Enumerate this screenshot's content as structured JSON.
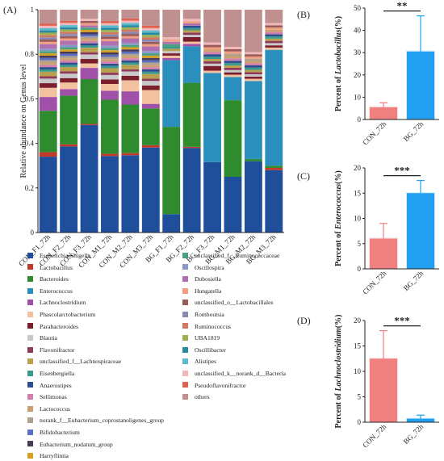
{
  "chart_data": [
    {
      "id": "A",
      "panel_label": "(A)",
      "type": "bar",
      "stacked": true,
      "ylabel": "Relative abundance on Genus level",
      "ylim": [
        0,
        1
      ],
      "yticks": [
        "0",
        "0.2",
        "0.4",
        "0.6",
        "0.8",
        "1"
      ],
      "categories": [
        "CON_F1_72h",
        "CON_F2_72h",
        "CON_F3_72h",
        "CON_M1_72h",
        "CON_M2_72h",
        "CON_M3_72h",
        "BG_F1_72h",
        "BG_F2_72h",
        "BG_F3_72h",
        "BG_M1_72h",
        "BG_M2_72h",
        "BG_M3_72h"
      ],
      "series": [
        {
          "name": "Escherichia-Shigella",
          "color": "#1f4e9a",
          "values": [
            0.33,
            0.39,
            0.48,
            0.34,
            0.35,
            0.37,
            0.08,
            0.37,
            0.3,
            0.24,
            0.32,
            0.28
          ]
        },
        {
          "name": "Lactobacillus",
          "color": "#c0392b",
          "values": [
            0.02,
            0.01,
            0.005,
            0.01,
            0.01,
            0.01,
            0.0,
            0.005,
            0.0,
            0.0,
            0.0,
            0.01
          ]
        },
        {
          "name": "Bacteroides",
          "color": "#2e8b2e",
          "values": [
            0.18,
            0.22,
            0.2,
            0.24,
            0.22,
            0.16,
            0.38,
            0.28,
            0.0,
            0.33,
            0.01,
            0.01
          ]
        },
        {
          "name": "Enterococcus",
          "color": "#2a8fbd",
          "values": [
            0.0,
            0.0,
            0.0,
            0.0,
            0.0,
            0.0,
            0.29,
            0.16,
            0.38,
            0.1,
            0.35,
            0.52
          ]
        },
        {
          "name": "Lachnoclostridium",
          "color": "#a050a8",
          "values": [
            0.06,
            0.03,
            0.05,
            0.04,
            0.06,
            0.02,
            0.01,
            0.01,
            0.0,
            0.0,
            0.0,
            0.0
          ]
        },
        {
          "name": "Phascolarctobacterium",
          "color": "#f2c1a0",
          "values": [
            0.04,
            0.03,
            0.02,
            0.03,
            0.05,
            0.06,
            0.01,
            0.01,
            0.01,
            0.01,
            0.01,
            0.01
          ]
        },
        {
          "name": "Parabacteroides",
          "color": "#7a1f2b",
          "values": [
            0.02,
            0.02,
            0.02,
            0.02,
            0.02,
            0.02,
            0.01,
            0.02,
            0.02,
            0.01,
            0.01,
            0.01
          ]
        },
        {
          "name": "Blautia",
          "color": "#c8c8c8",
          "values": [
            0.02,
            0.02,
            0.02,
            0.02,
            0.02,
            0.02,
            0.01,
            0.01,
            0.01,
            0.01,
            0.01,
            0.01
          ]
        },
        {
          "name": "Flavonifractor",
          "color": "#8e3a5a",
          "values": [
            0.01,
            0.01,
            0.01,
            0.01,
            0.01,
            0.01,
            0.0,
            0.01,
            0.01,
            0.01,
            0.01,
            0.01
          ]
        },
        {
          "name": "unclassified_f__Lachnospiraceae",
          "color": "#b8a04e",
          "values": [
            0.02,
            0.02,
            0.02,
            0.02,
            0.02,
            0.02,
            0.01,
            0.01,
            0.01,
            0.01,
            0.01,
            0.01
          ]
        },
        {
          "name": "Eisenbergiella",
          "color": "#3a9a8f",
          "values": [
            0.01,
            0.01,
            0.01,
            0.01,
            0.01,
            0.01,
            0.01,
            0.01,
            0.01,
            0.01,
            0.01,
            0.01
          ]
        },
        {
          "name": "Anaerostipes",
          "color": "#2b4f8a",
          "values": [
            0.01,
            0.01,
            0.01,
            0.01,
            0.01,
            0.01,
            0.0,
            0.01,
            0.01,
            0.01,
            0.01,
            0.01
          ]
        },
        {
          "name": "Sellimonas",
          "color": "#d27fb0",
          "values": [
            0.01,
            0.01,
            0.01,
            0.01,
            0.01,
            0.01,
            0.0,
            0.0,
            0.01,
            0.01,
            0.01,
            0.01
          ]
        },
        {
          "name": "Lactococcus",
          "color": "#c9a06e",
          "values": [
            0.01,
            0.01,
            0.01,
            0.01,
            0.01,
            0.01,
            0.0,
            0.0,
            0.01,
            0.01,
            0.01,
            0.01
          ]
        },
        {
          "name": "norank_f__Eubacterium_coprostanoligenes_group",
          "color": "#b0a090",
          "values": [
            0.01,
            0.01,
            0.01,
            0.01,
            0.01,
            0.01,
            0.0,
            0.0,
            0.0,
            0.01,
            0.01,
            0.0
          ]
        },
        {
          "name": "Bifidobacterium",
          "color": "#5a6fc0",
          "values": [
            0.01,
            0.01,
            0.01,
            0.01,
            0.01,
            0.01,
            0.0,
            0.0,
            0.0,
            0.0,
            0.0,
            0.0
          ]
        },
        {
          "name": "Eubacterium_nodatum_group",
          "color": "#4a3a5a",
          "values": [
            0.01,
            0.01,
            0.01,
            0.01,
            0.01,
            0.01,
            0.0,
            0.0,
            0.0,
            0.0,
            0.0,
            0.0
          ]
        },
        {
          "name": "Harryflintia",
          "color": "#d4a020",
          "values": [
            0.01,
            0.01,
            0.01,
            0.01,
            0.01,
            0.01,
            0.0,
            0.0,
            0.0,
            0.0,
            0.0,
            0.0
          ]
        },
        {
          "name": "unclassified_f__Ruminococcaceae",
          "color": "#4aa080",
          "values": [
            0.01,
            0.01,
            0.01,
            0.01,
            0.01,
            0.01,
            0.01,
            0.0,
            0.0,
            0.0,
            0.0,
            0.0
          ]
        },
        {
          "name": "Oscillospira",
          "color": "#8a9ac8",
          "values": [
            0.01,
            0.01,
            0.0,
            0.01,
            0.01,
            0.01,
            0.0,
            0.0,
            0.0,
            0.0,
            0.0,
            0.0
          ]
        },
        {
          "name": "Dubosiella",
          "color": "#b070b0",
          "values": [
            0.02,
            0.02,
            0.01,
            0.02,
            0.02,
            0.02,
            0.01,
            0.01,
            0.0,
            0.0,
            0.0,
            0.0
          ]
        },
        {
          "name": "Hungatella",
          "color": "#f0a080",
          "values": [
            0.01,
            0.01,
            0.01,
            0.01,
            0.01,
            0.01,
            0.01,
            0.01,
            0.01,
            0.01,
            0.01,
            0.01
          ]
        },
        {
          "name": "unclassified_o__Lactobacillales",
          "color": "#9a5a5a",
          "values": [
            0.01,
            0.01,
            0.01,
            0.01,
            0.01,
            0.01,
            0.0,
            0.0,
            0.01,
            0.01,
            0.01,
            0.01
          ]
        },
        {
          "name": "Romboutsia",
          "color": "#8a8ab0",
          "values": [
            0.01,
            0.01,
            0.0,
            0.01,
            0.01,
            0.01,
            0.0,
            0.0,
            0.0,
            0.0,
            0.0,
            0.0
          ]
        },
        {
          "name": "Ruminococcus",
          "color": "#d07860",
          "values": [
            0.01,
            0.01,
            0.0,
            0.01,
            0.01,
            0.01,
            0.0,
            0.0,
            0.0,
            0.0,
            0.0,
            0.0
          ]
        },
        {
          "name": "UBA1819",
          "color": "#a0b050",
          "values": [
            0.01,
            0.01,
            0.0,
            0.01,
            0.01,
            0.01,
            0.0,
            0.0,
            0.0,
            0.0,
            0.0,
            0.0
          ]
        },
        {
          "name": "Oscillibacter",
          "color": "#2a8aa0",
          "values": [
            0.01,
            0.01,
            0.0,
            0.01,
            0.01,
            0.01,
            0.0,
            0.0,
            0.0,
            0.0,
            0.0,
            0.0
          ]
        },
        {
          "name": "Alistipes",
          "color": "#5abacf",
          "values": [
            0.01,
            0.01,
            0.0,
            0.01,
            0.01,
            0.01,
            0.0,
            0.0,
            0.0,
            0.0,
            0.0,
            0.0
          ]
        },
        {
          "name": "unclassified_k__norank_d__Bacteria",
          "color": "#f0b8b8",
          "values": [
            0.01,
            0.01,
            0.01,
            0.01,
            0.01,
            0.01,
            0.01,
            0.01,
            0.01,
            0.01,
            0.01,
            0.01
          ]
        },
        {
          "name": "Pseudoflavonifractor",
          "color": "#e06050",
          "values": [
            0.01,
            0.01,
            0.0,
            0.01,
            0.01,
            0.01,
            0.0,
            0.0,
            0.0,
            0.0,
            0.0,
            0.0
          ]
        },
        {
          "name": "others",
          "color": "#c09090",
          "values": [
            0.06,
            0.05,
            0.04,
            0.05,
            0.04,
            0.07,
            0.12,
            0.04,
            0.14,
            0.16,
            0.19,
            0.06
          ]
        }
      ]
    },
    {
      "id": "B",
      "panel_label": "(B)",
      "type": "bar",
      "categories": [
        "CON_72h",
        "BG_72h"
      ],
      "values": [
        5.5,
        30.5
      ],
      "errors": [
        2.0,
        16.0
      ],
      "colors": [
        "#f08080",
        "#22a0f0"
      ],
      "ylabel_prefix": "Percent of ",
      "ylabel_taxon": "Lactobacillus",
      "ylabel_suffix": "(%)",
      "ylim": [
        0,
        50
      ],
      "yticks": [
        "0",
        "10",
        "20",
        "30",
        "40",
        "50"
      ],
      "significance": "**"
    },
    {
      "id": "C",
      "panel_label": "(C)",
      "type": "bar",
      "categories": [
        "CON_72h",
        "BG_72h"
      ],
      "values": [
        6.0,
        15.0
      ],
      "errors": [
        3.0,
        2.5
      ],
      "colors": [
        "#f08080",
        "#22a0f0"
      ],
      "ylabel_prefix": "Percent of ",
      "ylabel_taxon": "Enterococcus",
      "ylabel_suffix": "(%)",
      "ylim": [
        0,
        20
      ],
      "yticks": [
        "0",
        "5",
        "10",
        "15",
        "20"
      ],
      "significance": "***"
    },
    {
      "id": "D",
      "panel_label": "(D)",
      "type": "bar",
      "categories": [
        "CON_72h",
        "BG_72h"
      ],
      "values": [
        12.5,
        0.7
      ],
      "errors": [
        5.5,
        0.7
      ],
      "colors": [
        "#f08080",
        "#22a0f0"
      ],
      "ylabel_prefix": "Percent of ",
      "ylabel_taxon": "Lachnoclostridium",
      "ylabel_suffix": "(%)",
      "ylim": [
        0,
        20
      ],
      "yticks": [
        "0",
        "5",
        "10",
        "15",
        "20"
      ],
      "significance": "***"
    }
  ]
}
